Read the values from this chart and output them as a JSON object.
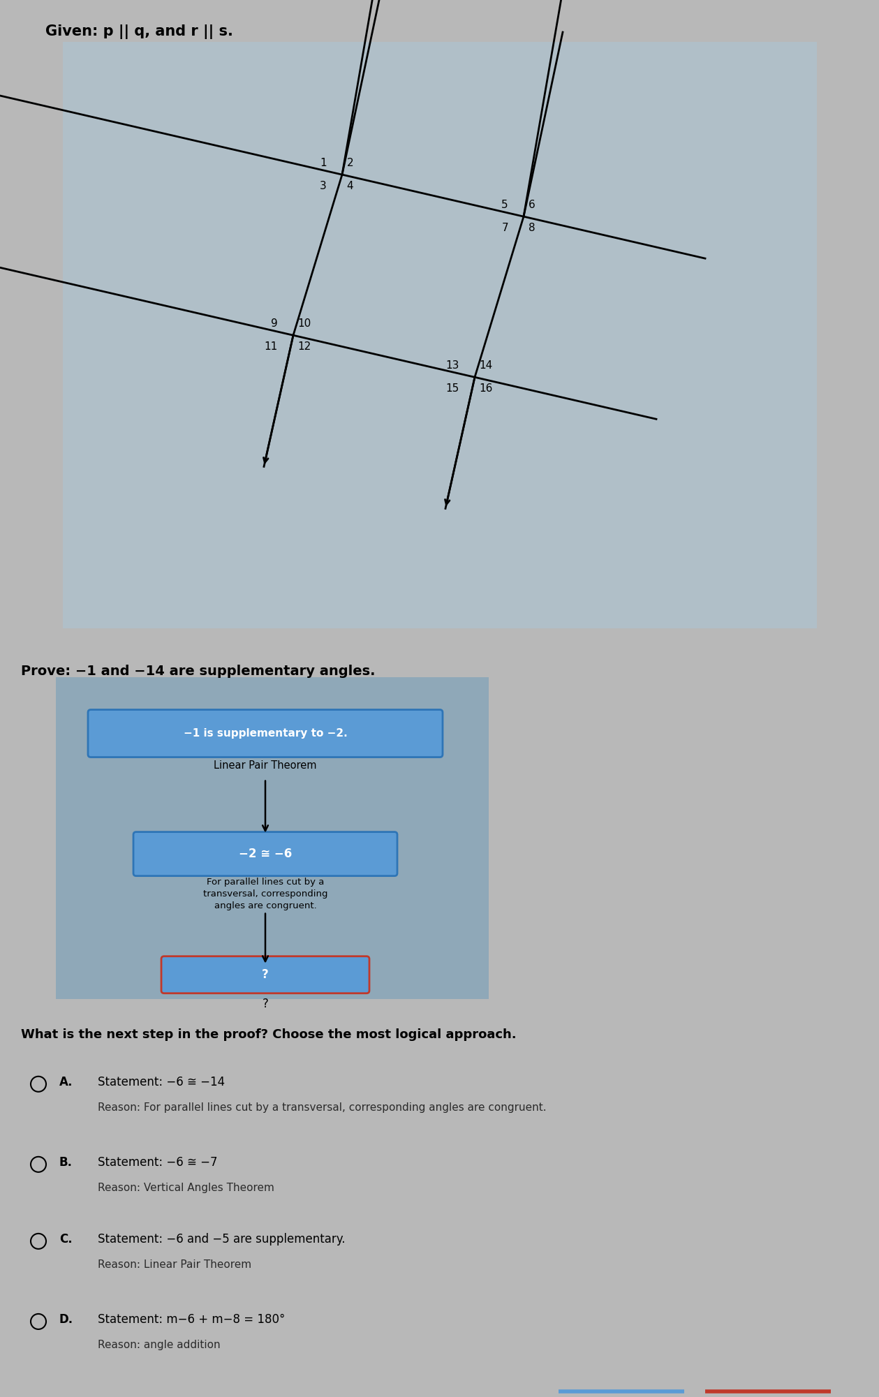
{
  "bg_color": "#b8b8b8",
  "given_text": "Given: p || q, and r || s.",
  "prove_text": "Prove: −1 and −14 are supplementary angles.",
  "question_text": "What is the next step in the proof? Choose the most logical approach.",
  "box1_text": "−1 is supplementary to −2.",
  "box1_reason": "Linear Pair Theorem",
  "box2_text": "−2 ≅ −6",
  "box2_reason": "For parallel lines cut by a\ntransversal, corresponding\nangles are congruent.",
  "box3_text": "?",
  "box3_reason": "?",
  "option_A_statement": "Statement: −6 ≅ −14",
  "option_A_reason": "Reason: For parallel lines cut by a transversal, corresponding angles are congruent.",
  "option_B_statement": "Statement: −6 ≅ −7",
  "option_B_reason": "Reason: Vertical Angles Theorem",
  "option_C_statement": "Statement: −6 and −5 are supplementary.",
  "option_C_reason": "Reason: Linear Pair Theorem",
  "option_D_statement": "Statement: m−6 + m−8 = 180°",
  "option_D_reason": "Reason: angle addition",
  "diagram_bg": "#b0bfc8",
  "outer_bg": "#c0c4c8",
  "proof_panel_bg": "#8fa8b8",
  "bottom_bg": "#c8c8c8"
}
